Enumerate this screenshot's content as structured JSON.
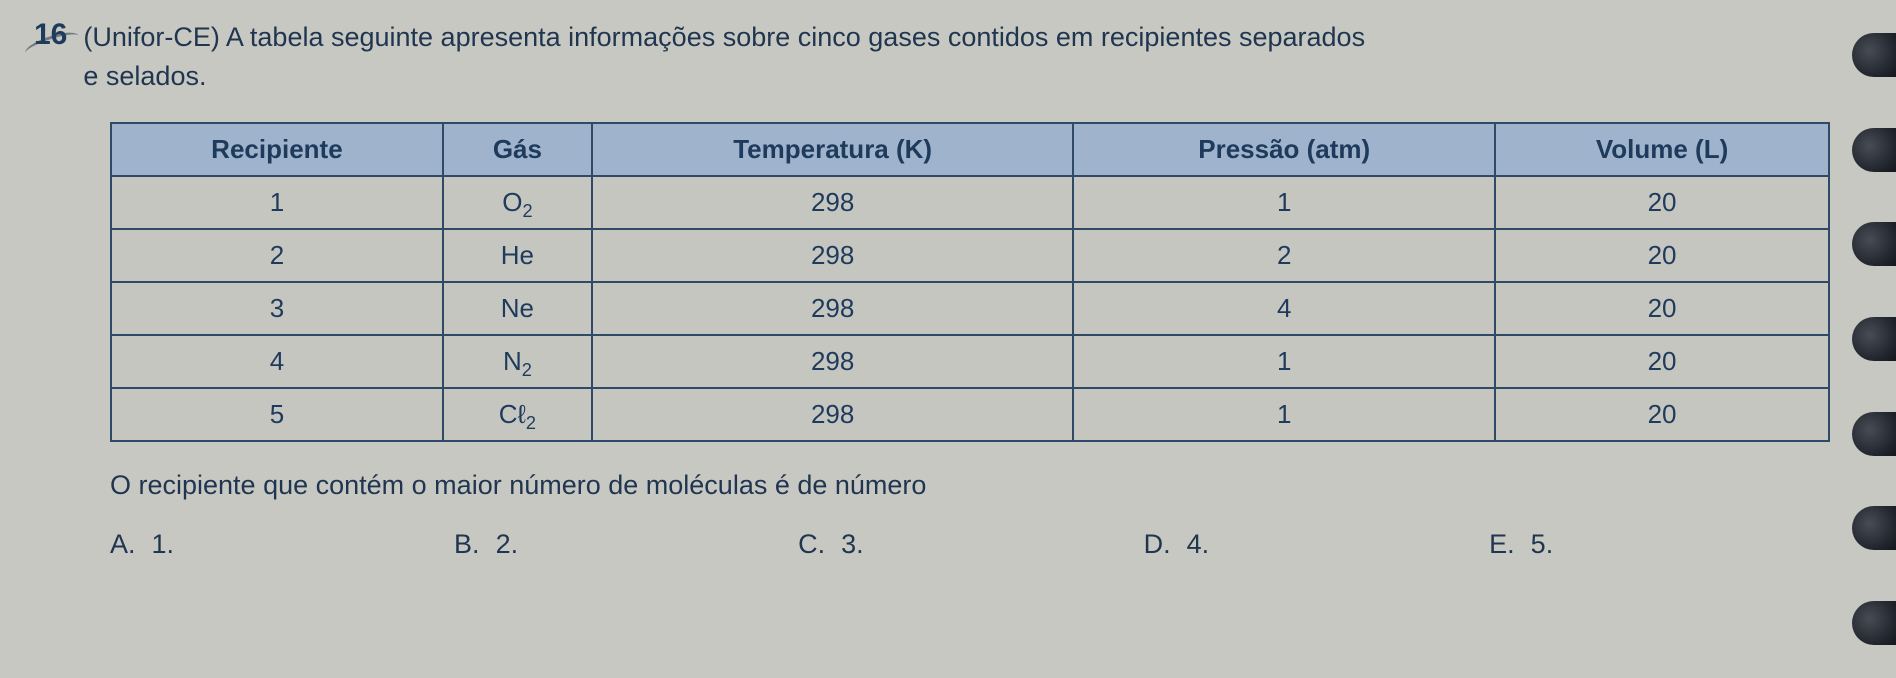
{
  "question": {
    "number": "16",
    "text_line1": "(Unifor-CE) A tabela seguinte apresenta informações sobre cinco gases contidos em recipientes separados",
    "text_line2": "e selados."
  },
  "table": {
    "headers": {
      "recipiente": "Recipiente",
      "gas": "Gás",
      "temperatura": "Temperatura (K)",
      "pressao": "Pressão (atm)",
      "volume": "Volume (L)"
    },
    "rows": [
      {
        "recipiente": "1",
        "gas_base": "O",
        "gas_sub": "2",
        "temperatura": "298",
        "pressao": "1",
        "volume": "20"
      },
      {
        "recipiente": "2",
        "gas_base": "He",
        "gas_sub": "",
        "temperatura": "298",
        "pressao": "2",
        "volume": "20"
      },
      {
        "recipiente": "3",
        "gas_base": "Ne",
        "gas_sub": "",
        "temperatura": "298",
        "pressao": "4",
        "volume": "20"
      },
      {
        "recipiente": "4",
        "gas_base": "N",
        "gas_sub": "2",
        "temperatura": "298",
        "pressao": "1",
        "volume": "20"
      },
      {
        "recipiente": "5",
        "gas_base": "Cℓ",
        "gas_sub": "2",
        "temperatura": "298",
        "pressao": "1",
        "volume": "20"
      }
    ],
    "header_bg": "#9fb4cc",
    "cell_bg": "#c6c6c0",
    "border_color": "#2f4a66",
    "text_color": "#1e3a5c",
    "fontsize": 26,
    "column_count": 5
  },
  "prompt": "O recipiente que contém o maior número de moléculas é de número",
  "options": [
    {
      "letter": "A.",
      "value": "1."
    },
    {
      "letter": "B.",
      "value": "2."
    },
    {
      "letter": "C.",
      "value": "3."
    },
    {
      "letter": "D.",
      "value": "4."
    },
    {
      "letter": "E.",
      "value": "5."
    }
  ],
  "page_style": {
    "background_color": "#c8c8c2",
    "text_color": "#1f3550",
    "question_number_color": "#1e3a5c",
    "body_fontsize": 27,
    "number_fontsize": 30
  }
}
